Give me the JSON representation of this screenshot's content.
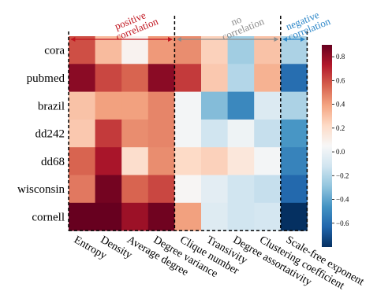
{
  "chart_data": {
    "type": "heatmap",
    "rows": [
      "cora",
      "pubmed",
      "brazil",
      "dd242",
      "dd68",
      "wisconsin",
      "cornell"
    ],
    "columns": [
      "Entropy",
      "Density",
      "Average degree",
      "Degree variance",
      "Clique number",
      "Transivity",
      "Degree assortativity",
      "Clustering coefficient",
      "Scale-free exponent"
    ],
    "values": [
      [
        0.6,
        0.32,
        0.08,
        0.42,
        0.45,
        0.25,
        -0.25,
        0.3,
        -0.22
      ],
      [
        0.82,
        0.62,
        0.55,
        0.82,
        0.65,
        0.28,
        -0.2,
        0.35,
        -0.6
      ],
      [
        0.3,
        0.4,
        0.4,
        0.47,
        0.03,
        -0.32,
        -0.5,
        -0.07,
        -0.22
      ],
      [
        0.28,
        0.65,
        0.45,
        0.47,
        0.03,
        -0.12,
        0.01,
        -0.15,
        -0.45
      ],
      [
        0.55,
        0.75,
        0.2,
        0.45,
        0.22,
        0.25,
        0.15,
        0.03,
        -0.52
      ],
      [
        0.5,
        0.87,
        0.55,
        0.62,
        0.06,
        -0.04,
        -0.12,
        -0.15,
        -0.62
      ],
      [
        0.9,
        0.93,
        0.78,
        0.88,
        0.4,
        -0.06,
        -0.12,
        -0.1,
        -0.82
      ]
    ],
    "vmin": -0.8,
    "vmax": 0.9,
    "colorbar_ticks": [
      0.8,
      0.6,
      0.4,
      0.2,
      0.0,
      -0.2,
      -0.4,
      -0.6
    ],
    "colorbar_tick_labels": [
      "0.8",
      "0.6",
      "0.4",
      "0.2",
      "0.0",
      "−0.2",
      "−0.4",
      "−0.6"
    ],
    "colormap": "RdBu_r",
    "groups": [
      {
        "label": "positive correlation",
        "lines": [
          "positive",
          "correlation"
        ],
        "start_col": 0,
        "end_col": 3,
        "color": "#c0141e"
      },
      {
        "label": "no correlation",
        "lines": [
          "no",
          "correlation"
        ],
        "start_col": 4,
        "end_col": 7,
        "color": "#8c8c8c"
      },
      {
        "label": "negative correlation",
        "lines": [
          "negative",
          "correlation"
        ],
        "start_col": 8,
        "end_col": 8,
        "color": "#2b86c8"
      }
    ],
    "separators_after_col": [
      3,
      7
    ],
    "legend": "colorbar-right"
  }
}
